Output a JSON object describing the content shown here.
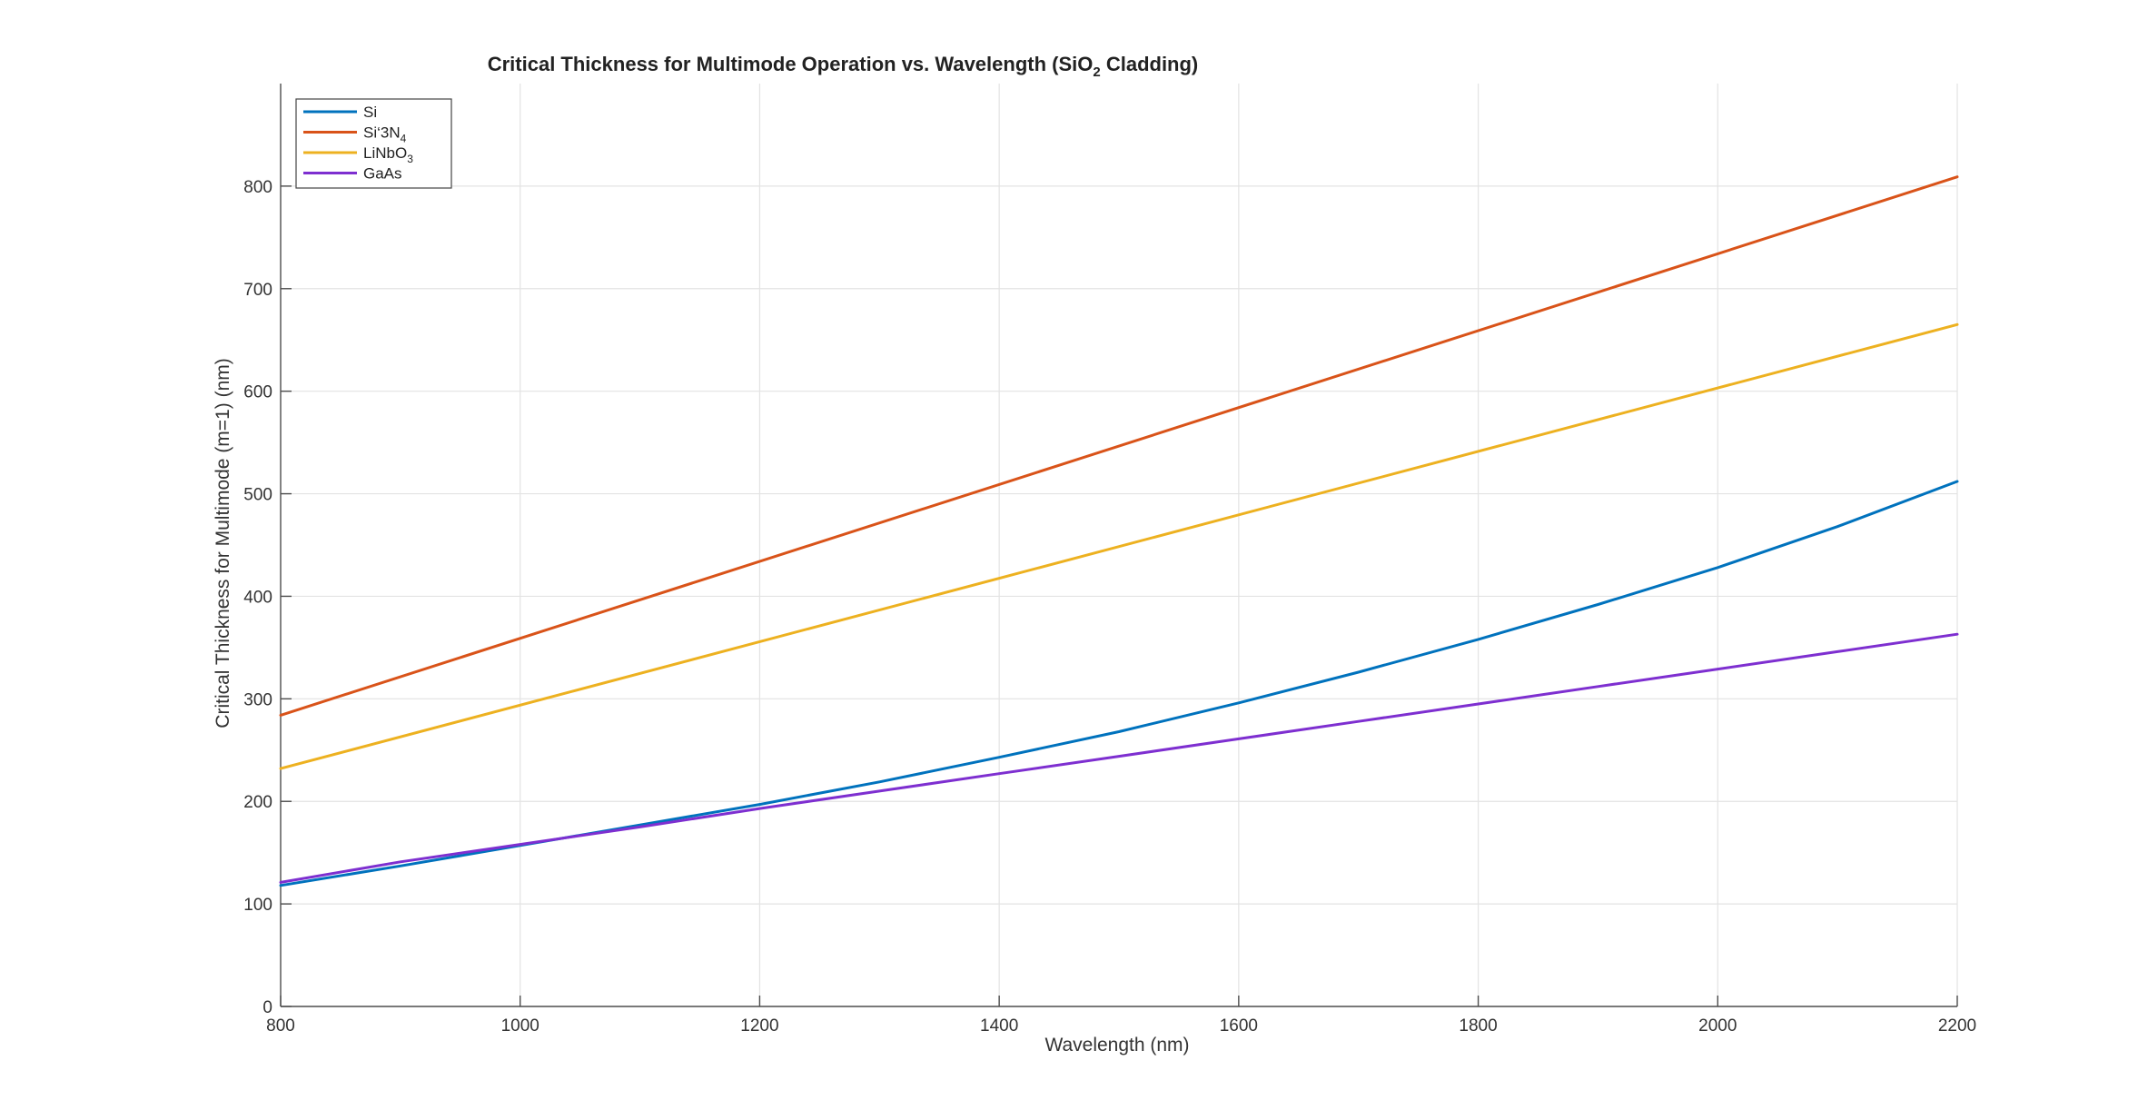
{
  "chart_data": {
    "type": "line",
    "title": "Critical Thickness for Multimode Operation vs. Wavelength (SiO",
    "title_sub": "2",
    "title_suffix": " Cladding)",
    "xlabel": "Wavelength (nm)",
    "ylabel": "Critical Thickness for Multimode (m=1) (nm)",
    "xlim": [
      800,
      2200
    ],
    "ylim": [
      0,
      900
    ],
    "xticks": [
      800,
      1000,
      1200,
      1400,
      1600,
      1800,
      2000,
      2200
    ],
    "yticks": [
      0,
      100,
      200,
      300,
      400,
      500,
      600,
      700,
      800
    ],
    "grid": true,
    "legend_position": "top-left",
    "series": [
      {
        "name": "Si",
        "color": "#0072BD",
        "x": [
          800,
          900,
          1000,
          1100,
          1200,
          1300,
          1400,
          1500,
          1600,
          1700,
          1800,
          1900,
          2000,
          2100,
          2200
        ],
        "y": [
          118,
          137,
          157,
          177,
          197,
          219,
          243,
          268,
          296,
          326,
          358,
          392,
          428,
          468,
          512
        ]
      },
      {
        "name": "Si",
        "name_sub": "3",
        "name_mid": "N",
        "name_sub2": "4",
        "name_legend": "Si‘3N",
        "color": "#D95319",
        "x": [
          800,
          2200
        ],
        "y": [
          284,
          809
        ]
      },
      {
        "name": "LiNbO",
        "name_sub": "3",
        "color": "#EDB120",
        "x": [
          800,
          2200
        ],
        "y": [
          232,
          665
        ]
      },
      {
        "name": "GaAs",
        "color": "#7E2FD0",
        "x": [
          800,
          900,
          1000,
          1100,
          1200,
          1300,
          1400,
          1500,
          1600,
          1700,
          1800,
          1900,
          2000,
          2100,
          2200
        ],
        "y": [
          121,
          141,
          158,
          175,
          193,
          210,
          227,
          244,
          261,
          278,
          295,
          312,
          329,
          346,
          363
        ]
      }
    ]
  }
}
